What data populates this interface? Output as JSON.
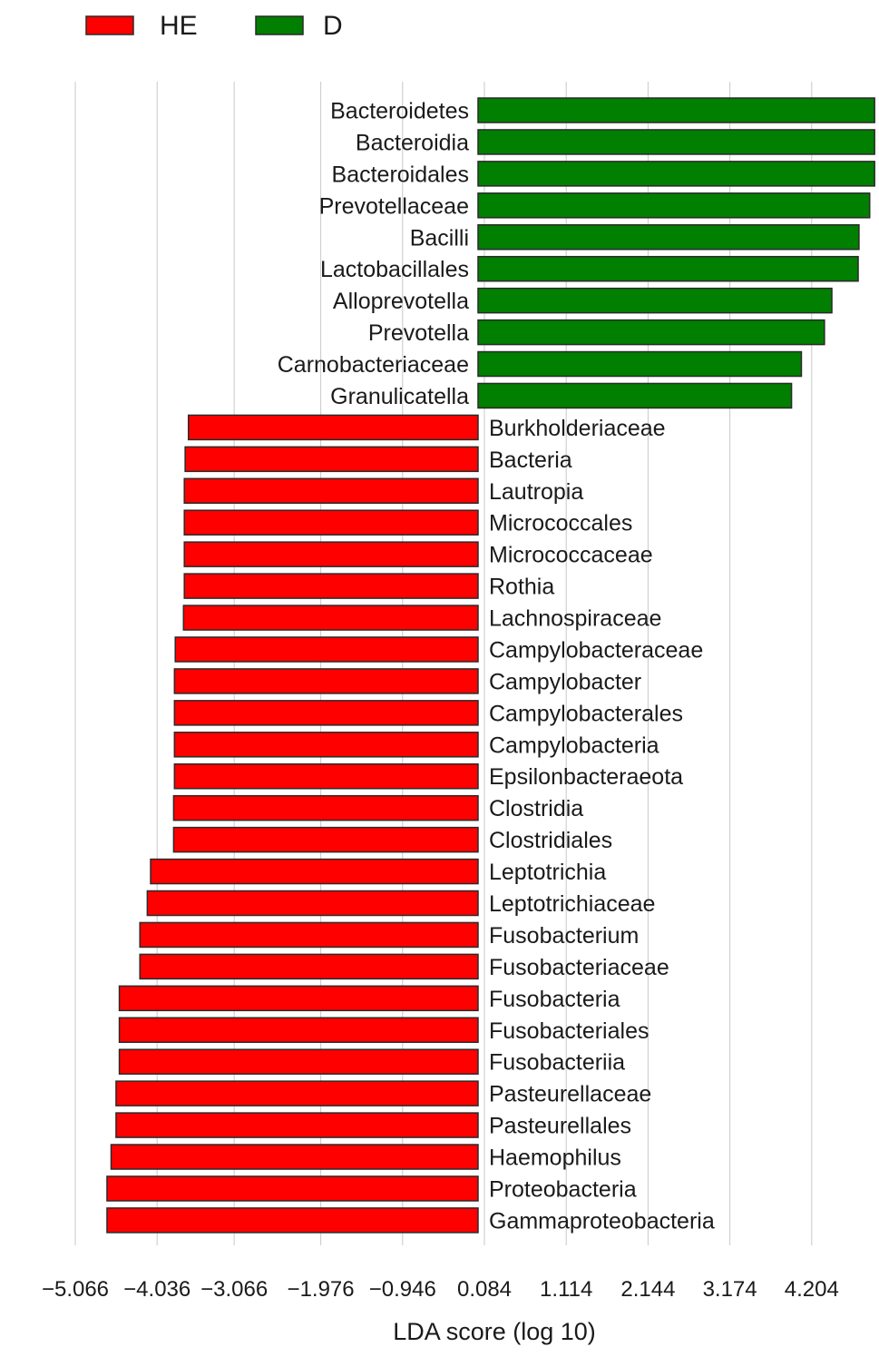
{
  "chart_data": {
    "type": "bar",
    "orientation": "horizontal",
    "xlabel": "LDA score (log 10)",
    "xlim": [
      -5.066,
      4.75
    ],
    "xticks": [
      -5.066,
      -4.036,
      -3.066,
      -1.976,
      -0.946,
      0.084,
      1.114,
      2.144,
      3.174,
      4.204
    ],
    "xtick_labels": [
      "−5.066",
      "−4.036",
      "−3.066",
      "−1.976",
      "−0.946",
      "0.084",
      "1.114",
      "2.144",
      "3.174",
      "4.204"
    ],
    "grid": true,
    "legend_position": "top-left",
    "series": [
      {
        "name": "HE",
        "color": "#ff0000"
      },
      {
        "name": "D",
        "color": "#007f00"
      }
    ],
    "bars": [
      {
        "label": "Bacteroidetes",
        "value": 4.82,
        "group": "D"
      },
      {
        "label": "Bacteroidia",
        "value": 4.82,
        "group": "D"
      },
      {
        "label": "Bacteroidales",
        "value": 4.82,
        "group": "D"
      },
      {
        "label": "Prevotellaceae",
        "value": 4.76,
        "group": "D"
      },
      {
        "label": "Bacilli",
        "value": 4.63,
        "group": "D"
      },
      {
        "label": "Lactobacillales",
        "value": 4.62,
        "group": "D"
      },
      {
        "label": "Alloprevotella",
        "value": 4.3,
        "group": "D"
      },
      {
        "label": "Prevotella",
        "value": 4.21,
        "group": "D"
      },
      {
        "label": "Carnobacteriaceae",
        "value": 3.93,
        "group": "D"
      },
      {
        "label": "Granulicatella",
        "value": 3.81,
        "group": "D"
      },
      {
        "label": "Burkholderiaceae",
        "value": -3.52,
        "group": "HE"
      },
      {
        "label": "Bacteria",
        "value": -3.56,
        "group": "HE"
      },
      {
        "label": "Lautropia",
        "value": -3.57,
        "group": "HE"
      },
      {
        "label": "Micrococcales",
        "value": -3.57,
        "group": "HE"
      },
      {
        "label": "Micrococcaceae",
        "value": -3.57,
        "group": "HE"
      },
      {
        "label": "Rothia",
        "value": -3.57,
        "group": "HE"
      },
      {
        "label": "Lachnospiraceae",
        "value": -3.58,
        "group": "HE"
      },
      {
        "label": "Campylobacteraceae",
        "value": -3.68,
        "group": "HE"
      },
      {
        "label": "Campylobacter",
        "value": -3.69,
        "group": "HE"
      },
      {
        "label": "Campylobacterales",
        "value": -3.69,
        "group": "HE"
      },
      {
        "label": "Campylobacteria",
        "value": -3.69,
        "group": "HE"
      },
      {
        "label": "Epsilonbacteraeota",
        "value": -3.69,
        "group": "HE"
      },
      {
        "label": "Clostridia",
        "value": -3.7,
        "group": "HE"
      },
      {
        "label": "Clostridiales",
        "value": -3.7,
        "group": "HE"
      },
      {
        "label": "Leptotrichia",
        "value": -3.98,
        "group": "HE"
      },
      {
        "label": "Leptotrichiaceae",
        "value": -4.02,
        "group": "HE"
      },
      {
        "label": "Fusobacterium",
        "value": -4.11,
        "group": "HE"
      },
      {
        "label": "Fusobacteriaceae",
        "value": -4.11,
        "group": "HE"
      },
      {
        "label": "Fusobacteria",
        "value": -4.36,
        "group": "HE"
      },
      {
        "label": "Fusobacteriales",
        "value": -4.36,
        "group": "HE"
      },
      {
        "label": "Fusobacteriia",
        "value": -4.36,
        "group": "HE"
      },
      {
        "label": "Pasteurellaceae",
        "value": -4.4,
        "group": "HE"
      },
      {
        "label": "Pasteurellales",
        "value": -4.4,
        "group": "HE"
      },
      {
        "label": "Haemophilus",
        "value": -4.46,
        "group": "HE"
      },
      {
        "label": "Proteobacteria",
        "value": -4.51,
        "group": "HE"
      },
      {
        "label": "Gammaproteobacteria",
        "value": -4.51,
        "group": "HE"
      }
    ]
  }
}
